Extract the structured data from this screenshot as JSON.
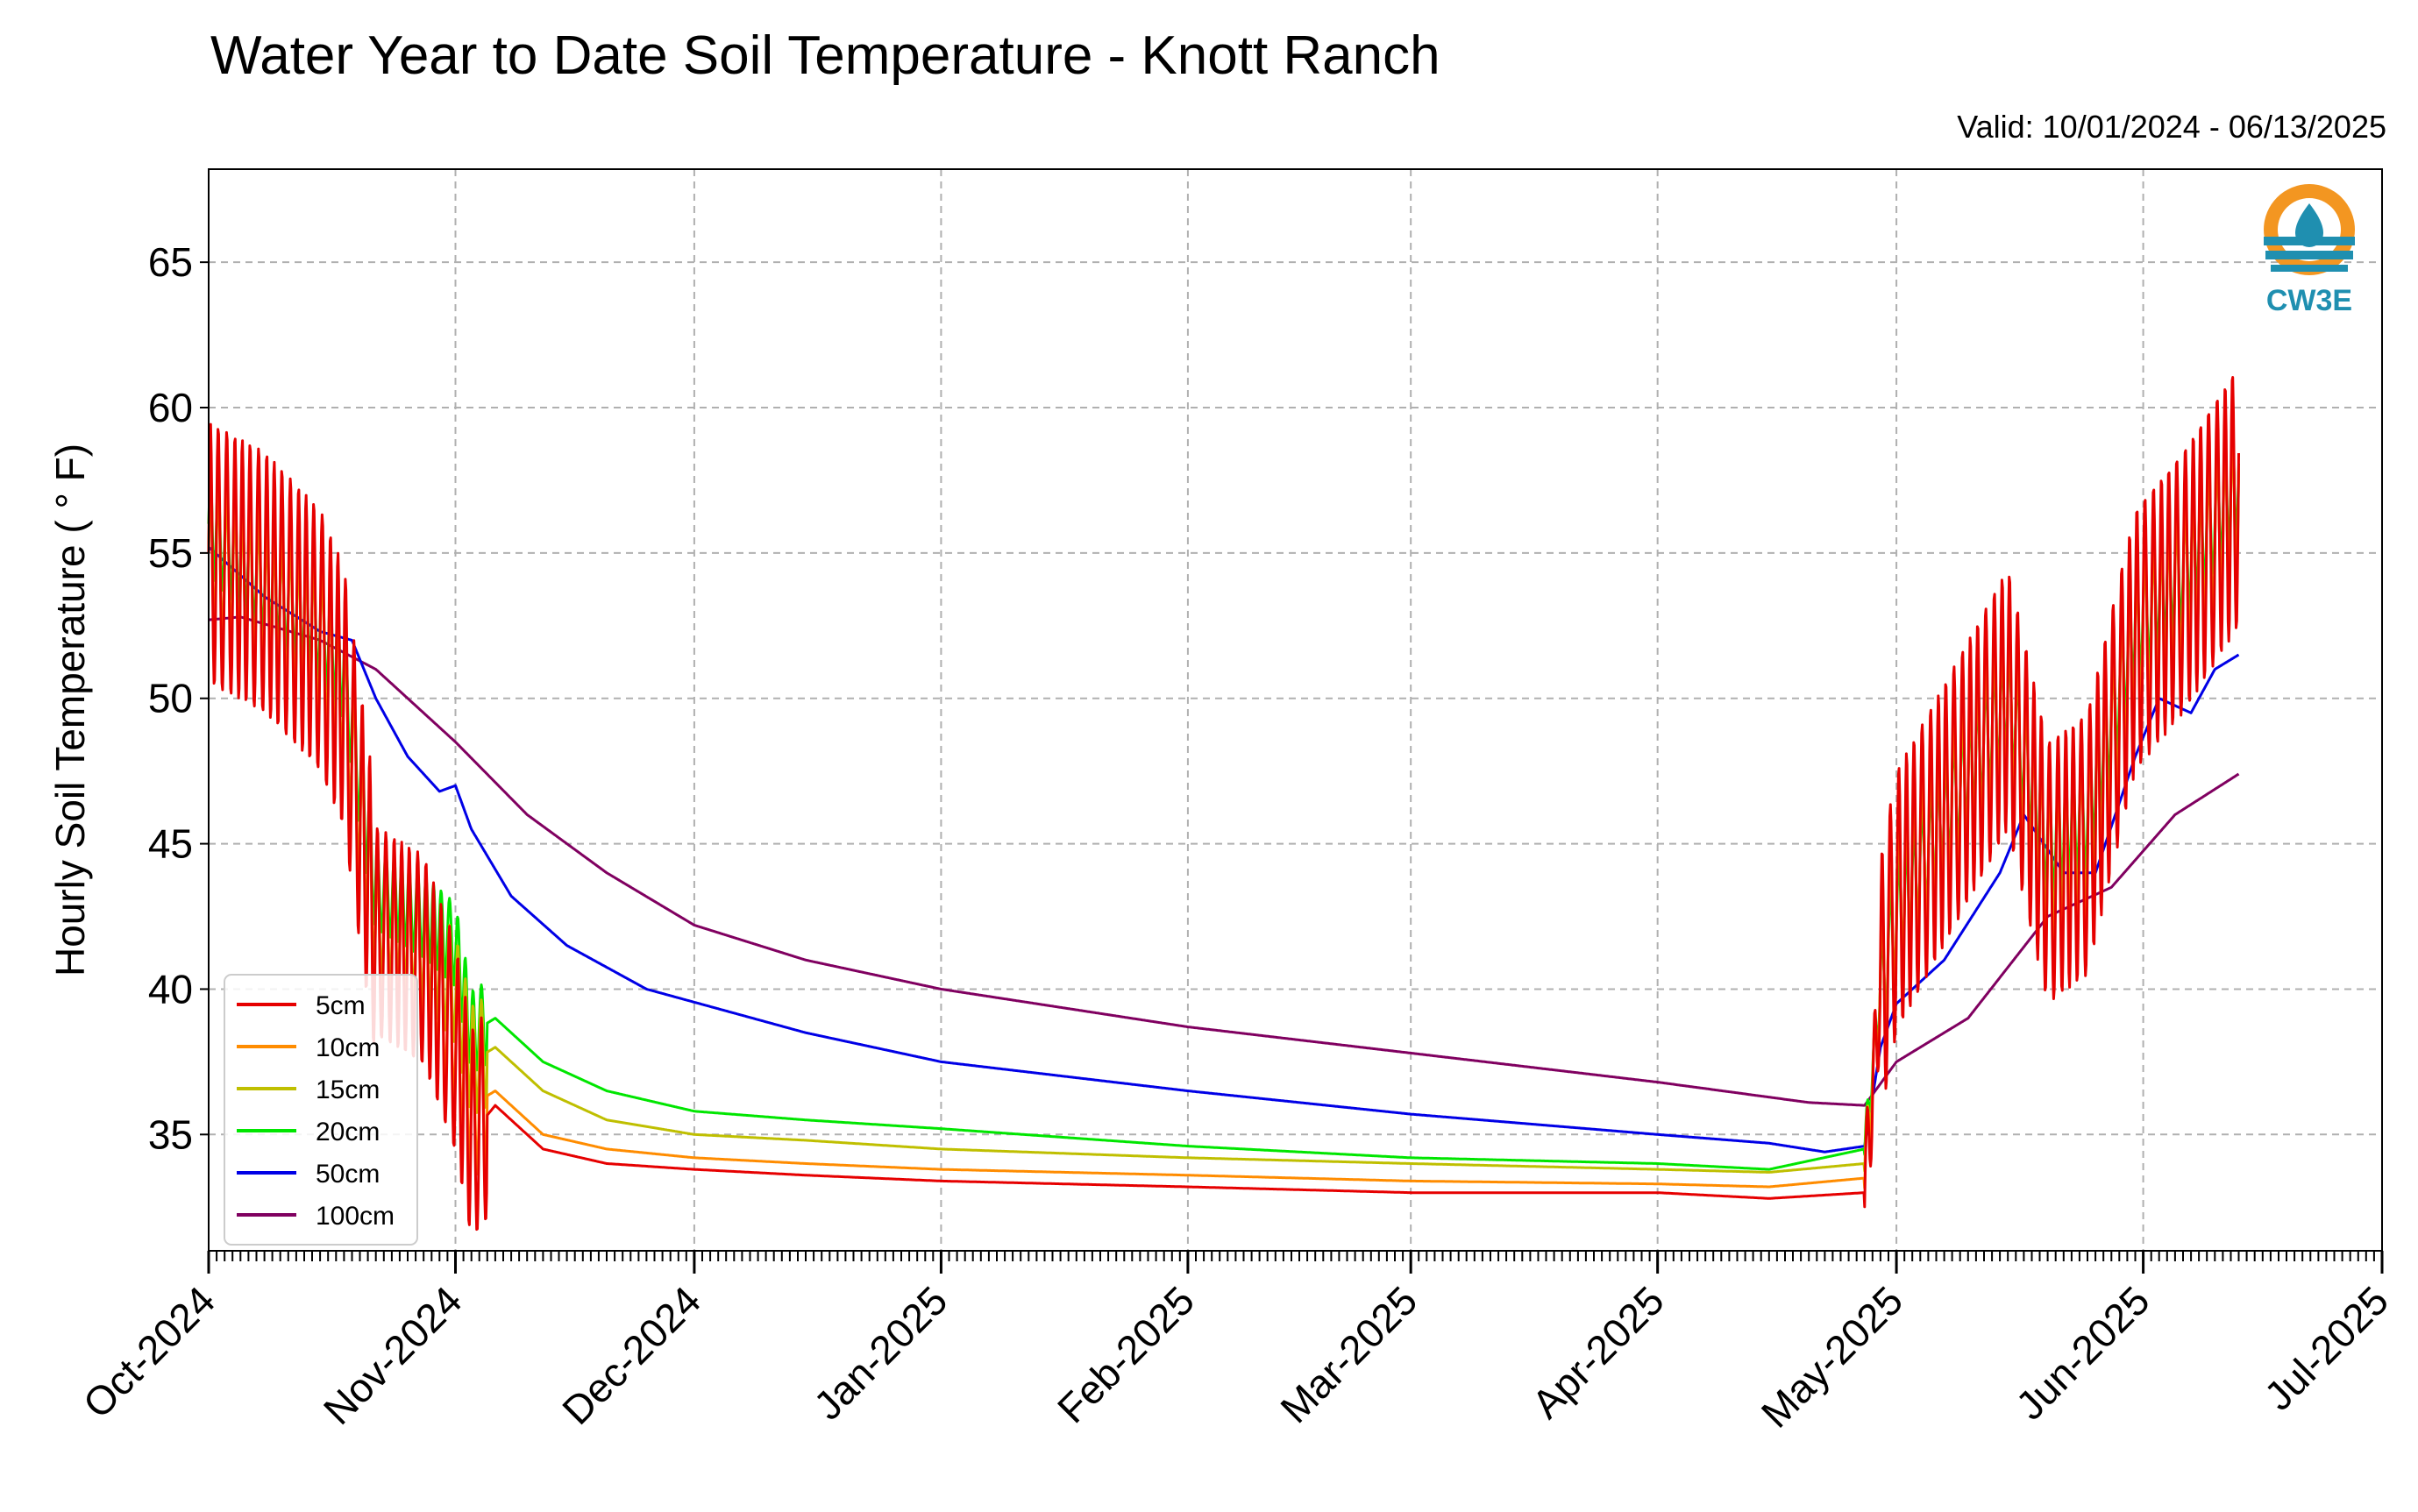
{
  "title": "Water Year to Date Soil Temperature - Knott Ranch",
  "valid_label": "Valid: 10/01/2024 - 06/13/2025",
  "logo_text": "CW3E",
  "colors": {
    "5cm": "#e60000",
    "10cm": "#ff8c00",
    "15cm": "#bfbf00",
    "20cm": "#00e600",
    "50cm": "#0000e6",
    "100cm": "#800060",
    "grid": "#b0b0b0",
    "logo_orange": "#f39621",
    "logo_teal": "#1f8fb0"
  },
  "chart_data": {
    "type": "line",
    "title": "Water Year to Date Soil Temperature - Knott Ranch",
    "ylabel": "Hourly Soil Temperature ( ° F)",
    "xlabel": "",
    "ylim": [
      31,
      68.2
    ],
    "xlim": [
      "2024-10-01",
      "2025-07-01"
    ],
    "grid": true,
    "legend_position": "lower-left",
    "y_ticks": [
      35,
      40,
      45,
      50,
      55,
      60,
      65
    ],
    "x_ticks": [
      {
        "date": "2024-10-01",
        "label": "Oct-2024"
      },
      {
        "date": "2024-11-01",
        "label": "Nov-2024"
      },
      {
        "date": "2024-12-01",
        "label": "Dec-2024"
      },
      {
        "date": "2025-01-01",
        "label": "Jan-2025"
      },
      {
        "date": "2025-02-01",
        "label": "Feb-2025"
      },
      {
        "date": "2025-03-01",
        "label": "Mar-2025"
      },
      {
        "date": "2025-04-01",
        "label": "Apr-2025"
      },
      {
        "date": "2025-05-01",
        "label": "May-2025"
      },
      {
        "date": "2025-06-01",
        "label": "Jun-2025"
      },
      {
        "date": "2025-07-01",
        "label": "Jul-2025"
      }
    ],
    "series": [
      {
        "name": "5cm",
        "color": "#e60000",
        "amp": 4.5,
        "points": [
          [
            "2024-10-01",
            55
          ],
          [
            "2024-10-08",
            54
          ],
          [
            "2024-10-15",
            52
          ],
          [
            "2024-10-18",
            50
          ],
          [
            "2024-10-22",
            42
          ],
          [
            "2024-10-28",
            41
          ],
          [
            "2024-11-01",
            38
          ],
          [
            "2024-11-03",
            35
          ],
          [
            "2024-11-06",
            36
          ],
          [
            "2024-11-12",
            34.5
          ],
          [
            "2024-11-20",
            34
          ],
          [
            "2024-12-01",
            33.8
          ],
          [
            "2024-12-15",
            33.6
          ],
          [
            "2025-01-01",
            33.4
          ],
          [
            "2025-02-01",
            33.2
          ],
          [
            "2025-03-01",
            33
          ],
          [
            "2025-04-01",
            33
          ],
          [
            "2025-04-15",
            32.8
          ],
          [
            "2025-04-27",
            33
          ],
          [
            "2025-04-29",
            40
          ],
          [
            "2025-05-01",
            43
          ],
          [
            "2025-05-07",
            46
          ],
          [
            "2025-05-15",
            50
          ],
          [
            "2025-05-20",
            44
          ],
          [
            "2025-05-25",
            45
          ],
          [
            "2025-05-31",
            52
          ],
          [
            "2025-06-06",
            54
          ],
          [
            "2025-06-13",
            57
          ]
        ]
      },
      {
        "name": "10cm",
        "color": "#ff8c00",
        "amp": 3.2,
        "points": [
          [
            "2024-10-01",
            55
          ],
          [
            "2024-10-08",
            53.8
          ],
          [
            "2024-10-15",
            52
          ],
          [
            "2024-10-18",
            50
          ],
          [
            "2024-10-22",
            42
          ],
          [
            "2024-10-28",
            41
          ],
          [
            "2024-11-01",
            38.5
          ],
          [
            "2024-11-03",
            36
          ],
          [
            "2024-11-06",
            36.5
          ],
          [
            "2024-11-12",
            35
          ],
          [
            "2024-11-20",
            34.5
          ],
          [
            "2024-12-01",
            34.2
          ],
          [
            "2024-12-15",
            34
          ],
          [
            "2025-01-01",
            33.8
          ],
          [
            "2025-02-01",
            33.6
          ],
          [
            "2025-03-01",
            33.4
          ],
          [
            "2025-04-01",
            33.3
          ],
          [
            "2025-04-15",
            33.2
          ],
          [
            "2025-04-27",
            33.5
          ],
          [
            "2025-04-29",
            40
          ],
          [
            "2025-05-01",
            43
          ],
          [
            "2025-05-07",
            46
          ],
          [
            "2025-05-15",
            50
          ],
          [
            "2025-05-20",
            44
          ],
          [
            "2025-05-25",
            45
          ],
          [
            "2025-05-31",
            52
          ],
          [
            "2025-06-06",
            54
          ],
          [
            "2025-06-13",
            57
          ]
        ]
      },
      {
        "name": "15cm",
        "color": "#bfbf00",
        "amp": 2.4,
        "points": [
          [
            "2024-10-01",
            55
          ],
          [
            "2024-10-08",
            53.5
          ],
          [
            "2024-10-15",
            52
          ],
          [
            "2024-10-18",
            50
          ],
          [
            "2024-10-22",
            42.5
          ],
          [
            "2024-10-28",
            41.5
          ],
          [
            "2024-11-01",
            40
          ],
          [
            "2024-11-03",
            37.5
          ],
          [
            "2024-11-06",
            38
          ],
          [
            "2024-11-12",
            36.5
          ],
          [
            "2024-11-20",
            35.5
          ],
          [
            "2024-12-01",
            35
          ],
          [
            "2024-12-15",
            34.8
          ],
          [
            "2025-01-01",
            34.5
          ],
          [
            "2025-02-01",
            34.2
          ],
          [
            "2025-03-01",
            34
          ],
          [
            "2025-04-01",
            33.8
          ],
          [
            "2025-04-15",
            33.7
          ],
          [
            "2025-04-27",
            34
          ],
          [
            "2025-04-29",
            40
          ],
          [
            "2025-05-01",
            43
          ],
          [
            "2025-05-07",
            46
          ],
          [
            "2025-05-15",
            50
          ],
          [
            "2025-05-20",
            44.5
          ],
          [
            "2025-05-25",
            45.5
          ],
          [
            "2025-05-31",
            52
          ],
          [
            "2025-06-06",
            54
          ],
          [
            "2025-06-13",
            57
          ]
        ]
      },
      {
        "name": "20cm",
        "color": "#00e600",
        "amp": 1.8,
        "points": [
          [
            "2024-10-01",
            56
          ],
          [
            "2024-10-08",
            54
          ],
          [
            "2024-10-15",
            52.5
          ],
          [
            "2024-10-18",
            51
          ],
          [
            "2024-10-22",
            43.5
          ],
          [
            "2024-10-28",
            42.5
          ],
          [
            "2024-11-01",
            41.5
          ],
          [
            "2024-11-03",
            38.5
          ],
          [
            "2024-11-06",
            39
          ],
          [
            "2024-11-12",
            37.5
          ],
          [
            "2024-11-20",
            36.5
          ],
          [
            "2024-12-01",
            35.8
          ],
          [
            "2024-12-15",
            35.5
          ],
          [
            "2025-01-01",
            35.2
          ],
          [
            "2025-02-01",
            34.6
          ],
          [
            "2025-03-01",
            34.2
          ],
          [
            "2025-04-01",
            34
          ],
          [
            "2025-04-15",
            33.8
          ],
          [
            "2025-04-27",
            34.5
          ],
          [
            "2025-04-29",
            40
          ],
          [
            "2025-05-01",
            42.5
          ],
          [
            "2025-05-07",
            46
          ],
          [
            "2025-05-15",
            50
          ],
          [
            "2025-05-20",
            45
          ],
          [
            "2025-05-25",
            46
          ],
          [
            "2025-05-31",
            52.5
          ],
          [
            "2025-06-06",
            54.5
          ],
          [
            "2025-06-13",
            57.5
          ]
        ]
      },
      {
        "name": "50cm",
        "color": "#0000e6",
        "amp": 0,
        "points": [
          [
            "2024-10-01",
            55.2
          ],
          [
            "2024-10-08",
            53.5
          ],
          [
            "2024-10-15",
            52.3
          ],
          [
            "2024-10-19",
            52
          ],
          [
            "2024-10-22",
            50
          ],
          [
            "2024-10-26",
            48
          ],
          [
            "2024-10-30",
            46.8
          ],
          [
            "2024-11-01",
            47
          ],
          [
            "2024-11-03",
            45.5
          ],
          [
            "2024-11-08",
            43.2
          ],
          [
            "2024-11-15",
            41.5
          ],
          [
            "2024-11-25",
            40
          ],
          [
            "2024-12-15",
            38.5
          ],
          [
            "2025-01-01",
            37.5
          ],
          [
            "2025-02-01",
            36.5
          ],
          [
            "2025-03-01",
            35.7
          ],
          [
            "2025-04-01",
            35
          ],
          [
            "2025-04-15",
            34.7
          ],
          [
            "2025-04-22",
            34.4
          ],
          [
            "2025-04-27",
            34.6
          ],
          [
            "2025-04-29",
            38
          ],
          [
            "2025-05-01",
            39.5
          ],
          [
            "2025-05-07",
            41
          ],
          [
            "2025-05-14",
            44
          ],
          [
            "2025-05-17",
            46
          ],
          [
            "2025-05-22",
            44
          ],
          [
            "2025-05-26",
            44
          ],
          [
            "2025-05-31",
            48
          ],
          [
            "2025-06-03",
            50
          ],
          [
            "2025-06-07",
            49.5
          ],
          [
            "2025-06-10",
            51
          ],
          [
            "2025-06-13",
            51.5
          ]
        ]
      },
      {
        "name": "100cm",
        "color": "#800060",
        "amp": 0,
        "points": [
          [
            "2024-10-01",
            52.7
          ],
          [
            "2024-10-05",
            52.8
          ],
          [
            "2024-10-15",
            52
          ],
          [
            "2024-10-22",
            51
          ],
          [
            "2024-11-01",
            48.5
          ],
          [
            "2024-11-10",
            46
          ],
          [
            "2024-11-20",
            44
          ],
          [
            "2024-12-01",
            42.2
          ],
          [
            "2024-12-15",
            41
          ],
          [
            "2025-01-01",
            40
          ],
          [
            "2025-02-01",
            38.7
          ],
          [
            "2025-03-01",
            37.8
          ],
          [
            "2025-04-01",
            36.8
          ],
          [
            "2025-04-20",
            36.1
          ],
          [
            "2025-04-27",
            36
          ],
          [
            "2025-05-01",
            37.5
          ],
          [
            "2025-05-10",
            39
          ],
          [
            "2025-05-20",
            42.5
          ],
          [
            "2025-05-28",
            43.5
          ],
          [
            "2025-06-05",
            46
          ],
          [
            "2025-06-13",
            47.4
          ]
        ]
      }
    ]
  }
}
